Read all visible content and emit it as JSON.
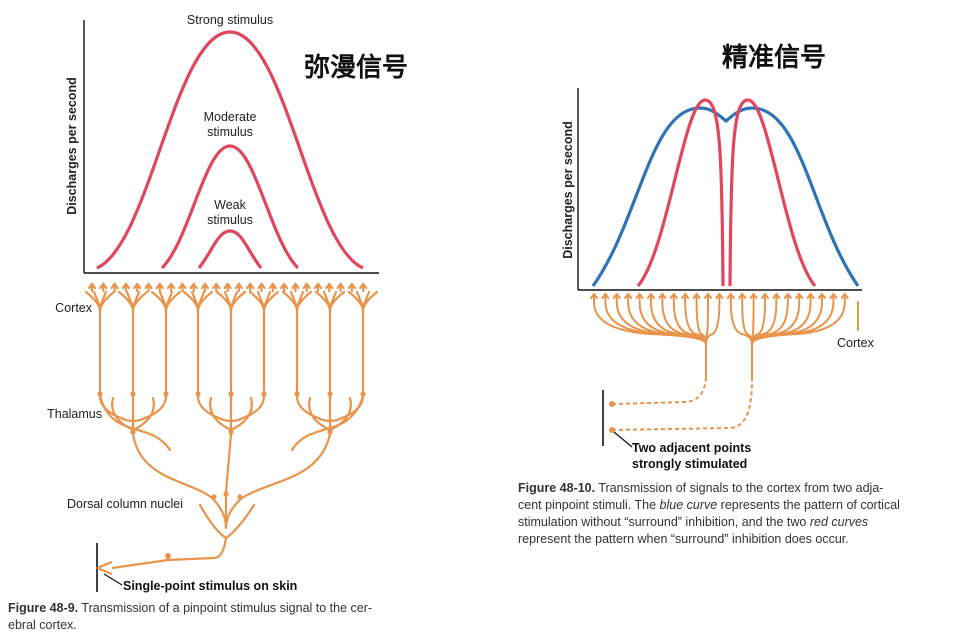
{
  "left_figure": {
    "overlay_title": "弥漫信号",
    "y_axis_label": "Discharges per second",
    "curve_labels": {
      "strong": "Strong stimulus",
      "moderate_line1": "Moderate",
      "moderate_line2": "stimulus",
      "weak_line1": "Weak",
      "weak_line2": "stimulus"
    },
    "region_labels": {
      "cortex": "Cortex",
      "thalamus": "Thalamus",
      "dorsal": "Dorsal column nuclei"
    },
    "stimulus_label": "Single-point stimulus on skin",
    "caption_label": "Figure 48-9.",
    "caption_line1": " Transmission of a pinpoint stimulus signal to the cer-",
    "caption_line2": "ebral cortex.",
    "curve_color": "#e0475f",
    "neuron_color": "#e8944a"
  },
  "right_figure": {
    "overlay_title": "精准信号",
    "y_axis_label": "Discharges per second",
    "cortex_label": "Cortex",
    "points_label_line1": "Two adjacent points",
    "points_label_line2": "strongly stimulated",
    "caption_label": "Figure 48-10.",
    "caption_l1": " Transmission of signals to the cortex from two adja-",
    "caption_l2a": "cent pinpoint stimuli. The ",
    "caption_l2b": "blue curve",
    "caption_l2c": " represents the pattern of cortical",
    "caption_l3": "stimulation without “surround” inhibition, and the two ",
    "caption_l3b": "red curves",
    "caption_l4": "represent the pattern when “surround” inhibition does occur.",
    "blue_color": "#2e73b8",
    "red_color": "#e0475f",
    "neuron_color": "#e8944a"
  }
}
